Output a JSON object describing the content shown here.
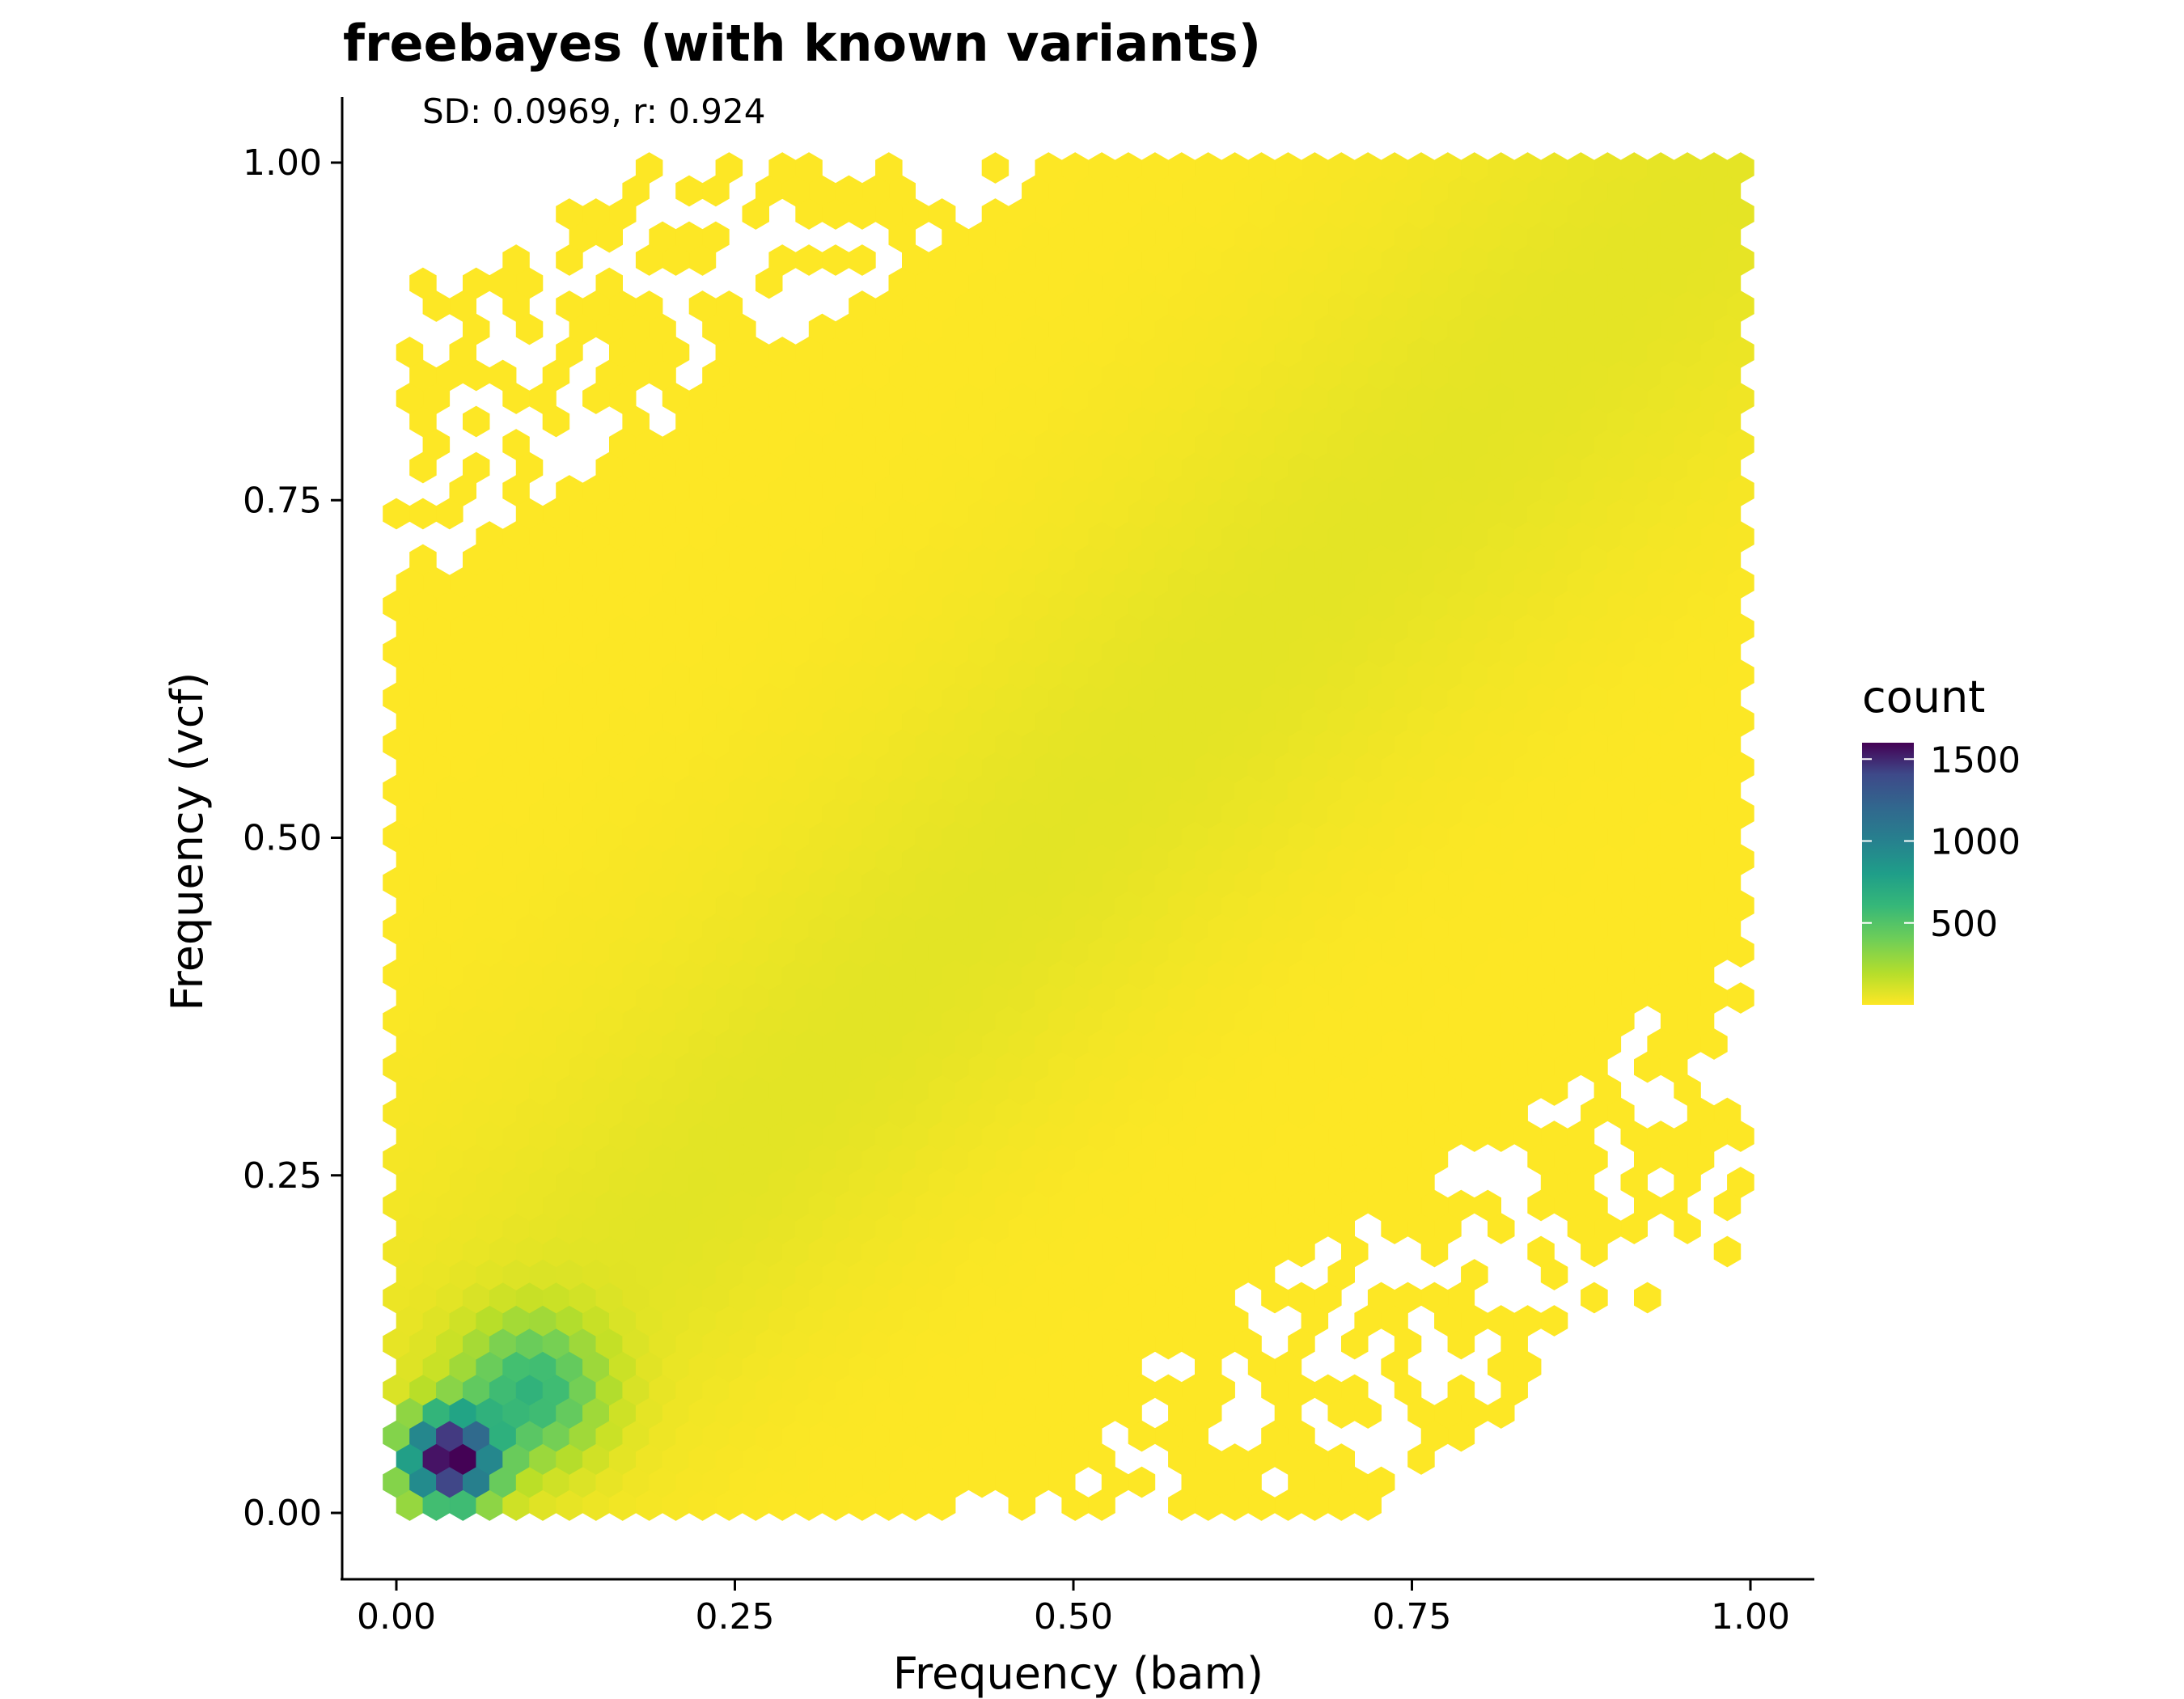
{
  "chart_data": {
    "type": "hexbin",
    "title": "freebayes (with known variants)",
    "annotation": "SD: 0.0969, r: 0.924",
    "xlabel": "Frequency (bam)",
    "ylabel": "Frequency (vcf)",
    "xlim": [
      -0.04,
      1.04
    ],
    "ylim": [
      -0.045,
      1.045
    ],
    "x_ticks": [
      0.0,
      0.25,
      0.5,
      0.75,
      1.0
    ],
    "x_tick_labels": [
      "0.00",
      "0.25",
      "0.50",
      "0.75",
      "1.00"
    ],
    "y_ticks": [
      0.0,
      0.25,
      0.5,
      0.75,
      1.0
    ],
    "y_tick_labels": [
      "0.00",
      "0.25",
      "0.50",
      "0.75",
      "1.00"
    ],
    "grid": false,
    "colormap": "viridis (reversed): low = #fde725, high = #440154",
    "legend": {
      "title": "count",
      "position": "right",
      "range": [
        0,
        1600
      ],
      "ticks": [
        500,
        1000,
        1500
      ],
      "tick_labels": [
        "500",
        "1000",
        "1500"
      ]
    },
    "statistics": {
      "SD": 0.0969,
      "r": 0.924
    },
    "density_summary": {
      "peak_bins": [
        {
          "x": 0.05,
          "y": 0.04,
          "count": 1600
        },
        {
          "x": 0.03,
          "y": 0.03,
          "count": 1500
        },
        {
          "x": 0.02,
          "y": 0.05,
          "count": 1300
        },
        {
          "x": 0.06,
          "y": 0.06,
          "count": 1200
        },
        {
          "x": 0.08,
          "y": 0.07,
          "count": 900
        },
        {
          "x": 0.1,
          "y": 0.09,
          "count": 700
        },
        {
          "x": 0.04,
          "y": 0.02,
          "count": 700
        },
        {
          "x": 0.12,
          "y": 0.11,
          "count": 550
        }
      ],
      "note_diagonal": "counts concentrated along y = x, tapering from bottom-left toward top-right"
    }
  }
}
